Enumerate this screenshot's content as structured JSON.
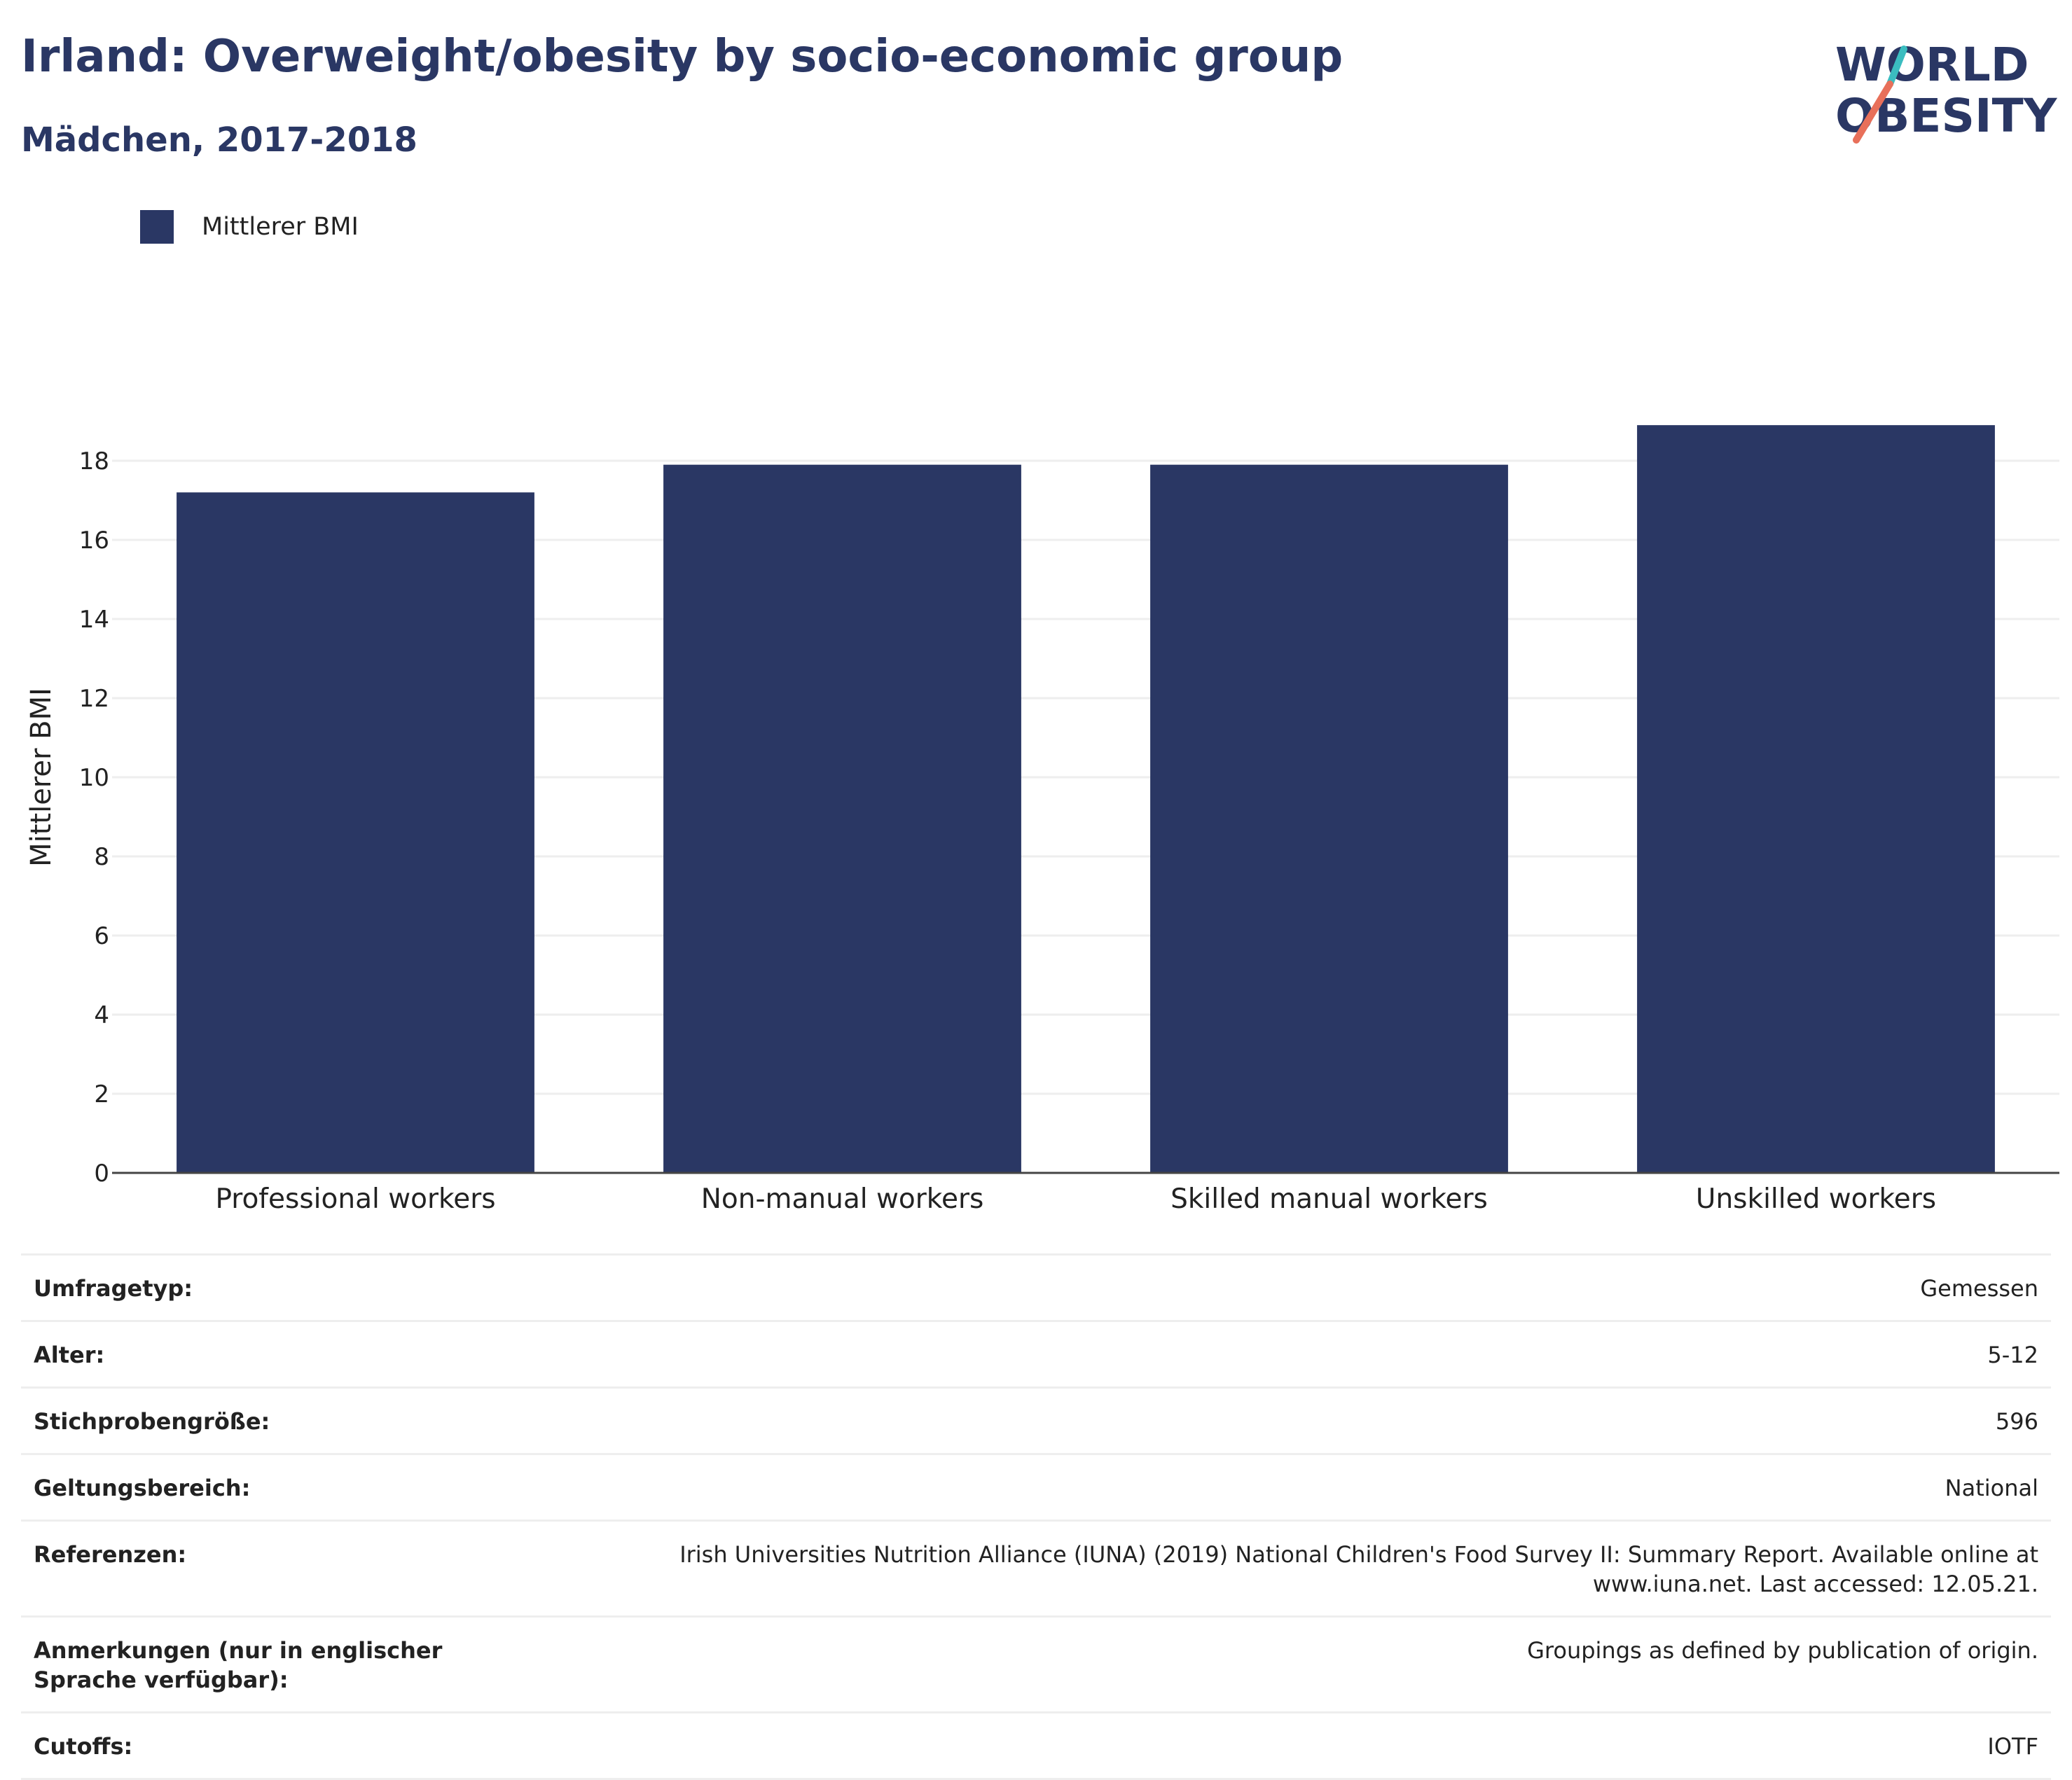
{
  "header": {
    "title": "Irland: Overweight/obesity by socio-economic group",
    "subtitle": "Mädchen, 2017-2018"
  },
  "logo": {
    "line1": "WORLD",
    "line2": "OBESITY",
    "colors": {
      "text": "#2a3764",
      "slash_top": "#3bbdc0",
      "slash_bottom": "#e8705a"
    }
  },
  "legend": {
    "label": "Mittlerer BMI"
  },
  "colors": {
    "bar": "#2a3764",
    "grid": "#eeeeee",
    "axis": "#444444",
    "text": "#222222"
  },
  "chart_data": {
    "type": "bar",
    "categories": [
      "Professional workers",
      "Non-manual workers",
      "Skilled manual workers",
      "Unskilled workers"
    ],
    "series": [
      {
        "name": "Mittlerer BMI",
        "values": [
          17.2,
          17.9,
          17.9,
          18.9
        ]
      }
    ],
    "ylabel": "Mittlerer BMI",
    "ylim": [
      0,
      20
    ],
    "yticks": [
      0,
      2,
      4,
      6,
      8,
      10,
      12,
      14,
      16,
      18
    ],
    "grid": true,
    "legend_position": "top-left"
  },
  "meta": [
    {
      "label": "Umfragetyp:",
      "value": "Gemessen"
    },
    {
      "label": "Alter:",
      "value": "5-12"
    },
    {
      "label": "Stichprobengröße:",
      "value": "596"
    },
    {
      "label": "Geltungsbereich:",
      "value": "National"
    },
    {
      "label": "Referenzen:",
      "value": "Irish Universities Nutrition Alliance (IUNA) (2019) National Children's Food Survey II: Summary Report. Available online at www.iuna.net. Last accessed: 12.05.21."
    },
    {
      "label": "Anmerkungen (nur in englischer Sprache verfügbar):",
      "value": "Groupings as defined by publication of origin."
    },
    {
      "label": "Cutoffs:",
      "value": "IOTF"
    }
  ]
}
